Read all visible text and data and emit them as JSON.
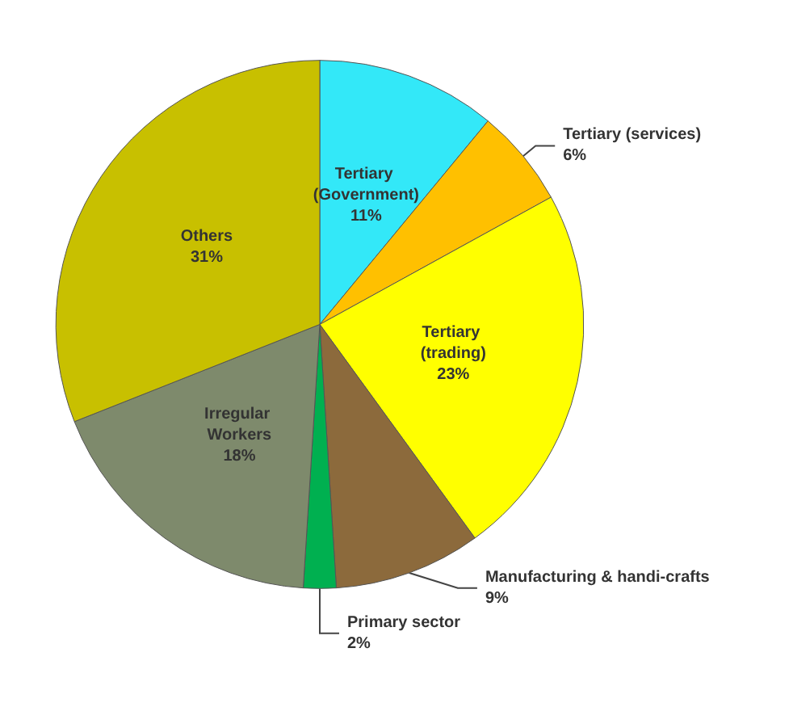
{
  "chart_data": {
    "type": "pie",
    "categories": [
      "Tertiary (Government)",
      "Tertiary (services)",
      "Tertiary (trading)",
      "Manufacturing & handi-crafts",
      "Primary sector",
      "Irregular Workers",
      "Others"
    ],
    "values": [
      11,
      6,
      23,
      9,
      2,
      18,
      31
    ],
    "value_labels": [
      "11%",
      "6%",
      "23%",
      "9%",
      "2%",
      "18%",
      "31%"
    ],
    "colors": [
      "#33e8f8",
      "#ffc000",
      "#ffff00",
      "#8c6a3c",
      "#00b050",
      "#7e8a6c",
      "#c8c000"
    ],
    "legend": false
  }
}
